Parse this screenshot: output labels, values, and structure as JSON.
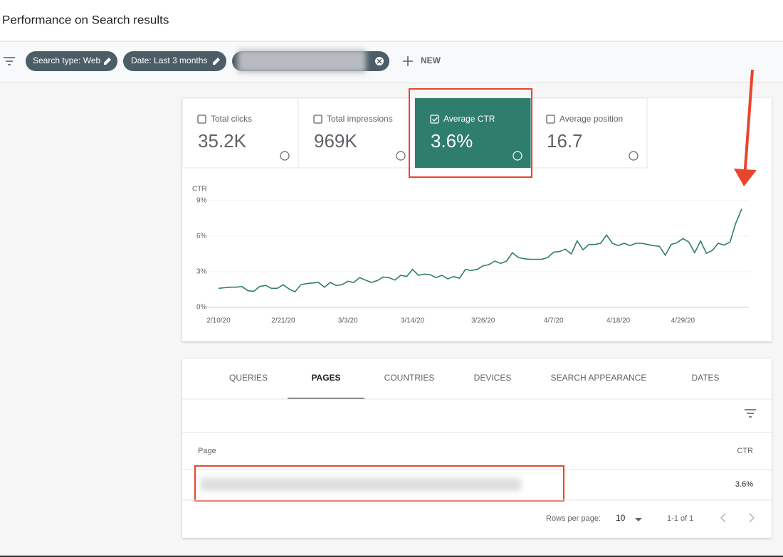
{
  "header": {
    "title": "Performance on Search results"
  },
  "filters": {
    "chips": [
      "Search type: Web",
      "Date: Last 3 months"
    ],
    "new": "NEW"
  },
  "metrics": [
    {
      "label": "Total clicks",
      "value": "35.2K",
      "selected": false
    },
    {
      "label": "Total impressions",
      "value": "969K",
      "selected": false
    },
    {
      "label": "Average CTR",
      "value": "3.6%",
      "selected": true
    },
    {
      "label": "Average position",
      "value": "16.7",
      "selected": false
    }
  ],
  "chart_data": {
    "type": "line",
    "y_label": "CTR",
    "color": "#2f7d6d",
    "grid": true,
    "values": [
      1.6,
      1.65,
      1.7,
      1.7,
      1.75,
      1.4,
      1.35,
      1.75,
      1.85,
      1.6,
      1.6,
      1.9,
      1.55,
      1.3,
      1.9,
      2.0,
      2.05,
      2.1,
      1.7,
      2.1,
      1.85,
      1.9,
      2.2,
      2.1,
      2.5,
      2.3,
      2.1,
      2.25,
      2.55,
      2.5,
      2.3,
      2.7,
      2.6,
      3.2,
      2.7,
      2.8,
      2.75,
      2.5,
      2.7,
      2.4,
      2.6,
      2.45,
      3.2,
      3.1,
      3.2,
      3.5,
      3.6,
      3.9,
      3.7,
      3.9,
      4.6,
      4.2,
      4.1,
      4.05,
      4.05,
      4.05,
      4.2,
      4.65,
      4.7,
      4.9,
      4.5,
      5.6,
      4.85,
      5.3,
      5.3,
      5.4,
      6.1,
      5.4,
      5.2,
      5.4,
      5.2,
      5.4,
      5.4,
      5.3,
      5.2,
      5.15,
      4.4,
      5.3,
      5.45,
      5.8,
      5.5,
      4.6,
      5.6,
      4.55,
      4.8,
      5.4,
      5.25,
      5.5,
      7.1,
      8.3
    ],
    "ylim": [
      0,
      9
    ],
    "yticks": [
      {
        "value": 0,
        "label": "0%"
      },
      {
        "value": 3,
        "label": "3%"
      },
      {
        "value": 6,
        "label": "6%"
      },
      {
        "value": 9,
        "label": "9%"
      }
    ],
    "xlim": [
      0,
      89
    ],
    "xticks": [
      {
        "value": 0,
        "label": "2/10/20"
      },
      {
        "value": 11,
        "label": "2/21/20"
      },
      {
        "value": 22,
        "label": "3/3/20"
      },
      {
        "value": 33,
        "label": "3/14/20"
      },
      {
        "value": 45,
        "label": "3/26/20"
      },
      {
        "value": 57,
        "label": "4/7/20"
      },
      {
        "value": 68,
        "label": "4/18/20"
      },
      {
        "value": 79,
        "label": "4/29/20"
      }
    ]
  },
  "tabs": [
    "QUERIES",
    "PAGES",
    "COUNTRIES",
    "DEVICES",
    "SEARCH APPEARANCE",
    "DATES"
  ],
  "table": {
    "columns": [
      "Page",
      "CTR"
    ],
    "rows": [
      {
        "ctr": "3.6%"
      }
    ],
    "footer": {
      "rows_per_page_label": "Rows per page:",
      "rows_per_page": "10",
      "range": "1-1 of 1"
    }
  }
}
